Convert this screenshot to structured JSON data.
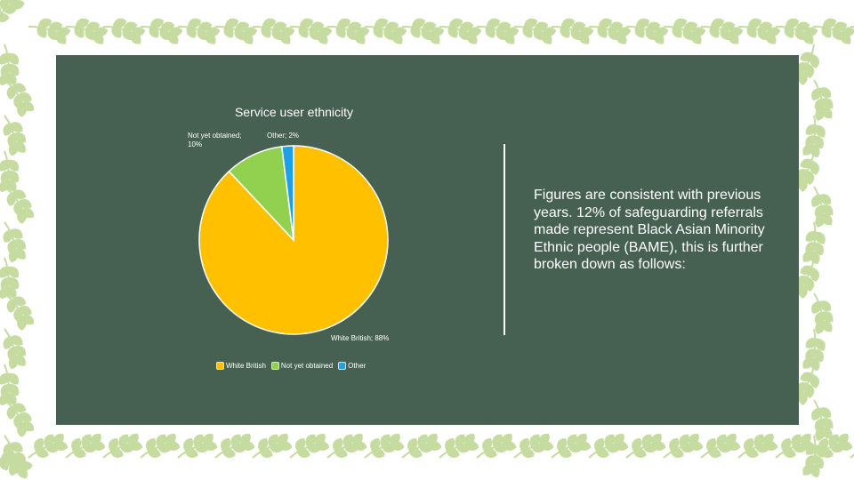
{
  "colors": {
    "panel": "#466151",
    "leaf": "#c5dba0",
    "white_british": "#ffc000",
    "not_yet_obtained": "#92d050",
    "other": "#1ea0e8"
  },
  "chart_data": {
    "type": "pie",
    "title": "Service user ethnicity",
    "categories": [
      "White British",
      "Not yet obtained",
      "Other"
    ],
    "values": [
      88,
      10,
      2
    ],
    "data_labels": [
      "White British; 88%",
      "Not yet obtained; 10%",
      "Other; 2%"
    ],
    "legend": [
      "White British",
      "Not yet obtained",
      "Other"
    ],
    "legend_position": "bottom"
  },
  "body_text": "Figures are consistent with previous years.  12% of safeguarding referrals made represent Black Asian Minority Ethnic people (BAME), this is further broken down as follows:"
}
